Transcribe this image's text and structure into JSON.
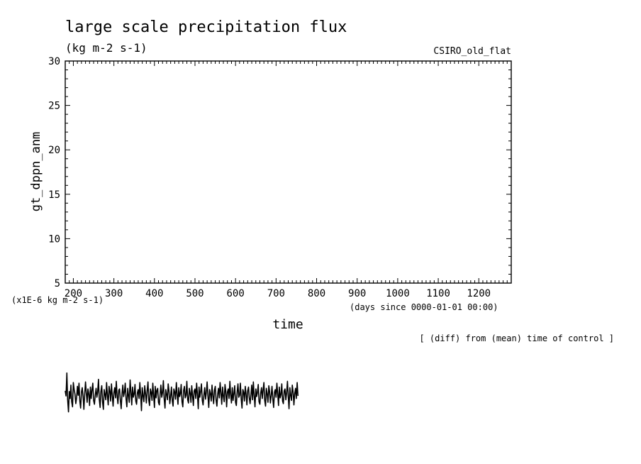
{
  "chart_data": {
    "type": "line",
    "title": "large scale precipitation flux",
    "subtitle": "(kg m-2 s-1)",
    "model_label": "CSIRO_old_flat",
    "xlabel": "time",
    "x_units_note": "(days since 0000-01-01 00:00)",
    "ylabel": "gt_dppn_anm",
    "y_units_note": "(x1E-6 kg m-2 s-1)",
    "footnote": "[ (diff) from (mean) time of control ]",
    "xlim": [
      180,
      1280
    ],
    "ylim": [
      5,
      30
    ],
    "x_ticks": [
      "200",
      "300",
      "400",
      "500",
      "600",
      "700",
      "800",
      "900",
      "1000",
      "1100",
      "1200"
    ],
    "y_ticks": [
      "5",
      "10",
      "15",
      "20",
      "25",
      "30"
    ],
    "grid": false,
    "note": "Series values lie far below the axis range (about -5 to -13); trace drawn below the frame.",
    "series": [
      {
        "x_start": 180,
        "x_step": 2,
        "values": [
          -8.1,
          -8.9,
          -5.3,
          -9.5,
          -11.4,
          -8.2,
          -9.3,
          -7.2,
          -9.8,
          -10.6,
          -6.8,
          -7.9,
          -8.6,
          -10.1,
          -9.2,
          -7.4,
          -8.8,
          -6.9,
          -9.7,
          -10.8,
          -8.3,
          -7.6,
          -9.0,
          -11.0,
          -8.7,
          -6.7,
          -8.4,
          -9.9,
          -7.8,
          -8.6,
          -10.4,
          -7.5,
          -9.3,
          -8.0,
          -6.9,
          -9.6,
          -10.2,
          -8.8,
          -7.7,
          -9.1,
          -8.3,
          -6.3,
          -9.4,
          -10.7,
          -8.2,
          -7.3,
          -9.8,
          -11.0,
          -7.9,
          -8.6,
          -9.5,
          -6.8,
          -8.9,
          -10.3,
          -7.4,
          -8.1,
          -9.7,
          -7.0,
          -8.8,
          -10.5,
          -8.4,
          -7.6,
          -9.2,
          -6.6,
          -8.9,
          -10.1,
          -8.0,
          -7.8,
          -9.6,
          -10.9,
          -8.5,
          -7.2,
          -9.0,
          -8.3,
          -6.9,
          -9.4,
          -10.6,
          -7.7,
          -8.8,
          -9.9,
          -6.4,
          -8.2,
          -10.3,
          -7.5,
          -9.1,
          -8.6,
          -7.1,
          -9.7,
          -10.2,
          -8.4,
          -7.9,
          -9.3,
          -6.8,
          -8.7,
          -11.2,
          -7.6,
          -8.9,
          -9.8,
          -7.3,
          -8.5,
          -10.0,
          -8.1,
          -6.7,
          -9.5,
          -10.4,
          -7.8,
          -8.3,
          -9.6,
          -6.9,
          -8.8,
          -10.7,
          -7.4,
          -9.2,
          -8.0,
          -7.7,
          -9.9,
          -10.3,
          -8.6,
          -7.2,
          -9.1,
          -8.4,
          -6.5,
          -9.3,
          -10.8,
          -7.9,
          -8.7,
          -9.5,
          -7.0,
          -8.2,
          -10.1,
          -8.9,
          -7.5,
          -9.7,
          -10.5,
          -7.8,
          -8.3,
          -9.4,
          -6.8,
          -8.6,
          -10.2,
          -7.6,
          -9.0,
          -8.5,
          -7.1,
          -9.8,
          -10.6,
          -8.0,
          -7.4,
          -9.2,
          -8.8,
          -6.6,
          -9.5,
          -10.0,
          -7.7,
          -8.4,
          -9.9,
          -7.3,
          -8.9,
          -10.4,
          -8.1,
          -7.8,
          -9.3,
          -6.9,
          -8.6,
          -10.9,
          -7.5,
          -9.1,
          -8.2,
          -7.0,
          -9.6,
          -10.3,
          -8.7,
          -7.6,
          -9.4,
          -8.3,
          -6.7,
          -9.0,
          -10.7,
          -7.9,
          -8.5,
          -9.7,
          -7.2,
          -8.8,
          -10.1,
          -8.0,
          -7.4,
          -9.5,
          -10.5,
          -8.6,
          -7.7,
          -9.2,
          -6.8,
          -8.4,
          -10.2,
          -7.5,
          -8.9,
          -9.8,
          -7.1,
          -8.1,
          -10.6,
          -8.3,
          -7.8,
          -9.3,
          -6.6,
          -8.7,
          -10.0,
          -7.6,
          -9.6,
          -8.5,
          -7.3,
          -9.9,
          -10.4,
          -8.2,
          -7.0,
          -9.1,
          -8.8,
          -6.9,
          -9.4,
          -10.8,
          -7.9,
          -8.3,
          -9.7,
          -7.4,
          -8.6,
          -10.3,
          -8.1,
          -7.5,
          -9.2,
          -10.1,
          -8.7,
          -7.2,
          -9.5,
          -6.7,
          -8.9,
          -10.6,
          -7.8,
          -9.0,
          -8.4,
          -7.1,
          -9.8,
          -10.2,
          -8.5,
          -7.6,
          -9.3,
          -8.0,
          -6.8,
          -9.6,
          -10.5,
          -7.7,
          -8.6,
          -9.9,
          -7.3,
          -8.2,
          -10.0,
          -8.8,
          -7.4,
          -9.4,
          -10.7,
          -8.3,
          -7.9,
          -9.1,
          -6.9,
          -8.5,
          -10.4,
          -7.5,
          -9.2,
          -8.7,
          -7.0,
          -9.7,
          -10.1,
          -8.1,
          -7.8,
          -9.5,
          -8.4,
          -6.6,
          -9.0,
          -10.9,
          -7.6,
          -8.8,
          -9.6,
          -7.2,
          -8.3,
          -10.3,
          -8.6,
          -7.7,
          -9.3,
          -6.8,
          -8.9
        ]
      }
    ]
  }
}
